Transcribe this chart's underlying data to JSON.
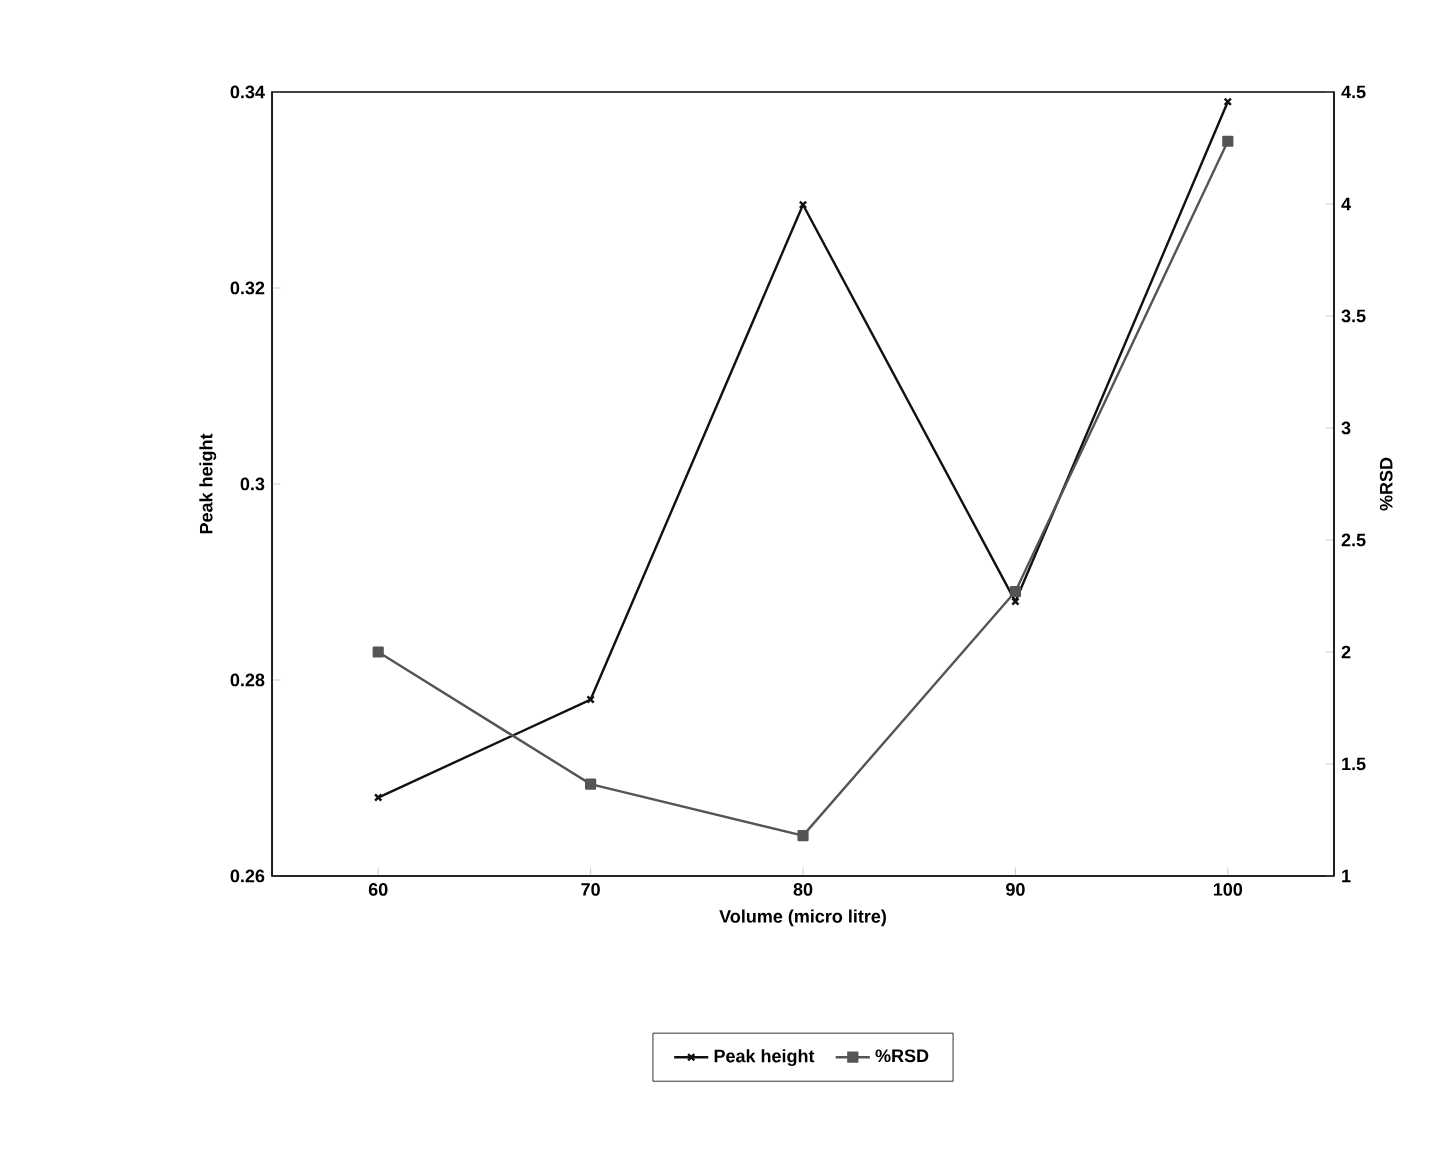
{
  "chart_data": {
    "type": "line",
    "xlabel": "Volume (micro litre)",
    "ylabel": "Peak height",
    "y2label": "%RSD",
    "x": [
      60,
      70,
      80,
      90,
      100
    ],
    "series": [
      {
        "name": "Peak height",
        "color": "#111111",
        "marker": "cross",
        "values": [
          0.268,
          0.278,
          0.3285,
          0.288,
          0.339
        ]
      },
      {
        "name": "%RSD",
        "color": "#555555",
        "marker": "square",
        "axis": "y2",
        "values": [
          2.0,
          1.41,
          1.18,
          2.27,
          4.28
        ]
      }
    ],
    "xlim": [
      55,
      105
    ],
    "xticks": [
      60,
      70,
      80,
      90,
      100
    ],
    "ylim": [
      0.26,
      0.34
    ],
    "yticks": [
      0.26,
      0.28,
      0.3,
      0.32,
      0.34
    ],
    "y2lim": [
      1,
      4.5
    ],
    "y2ticks": [
      1,
      1.5,
      2,
      2.5,
      3,
      3.5,
      4,
      4.5
    ],
    "grid": false,
    "legend": "bottom"
  }
}
